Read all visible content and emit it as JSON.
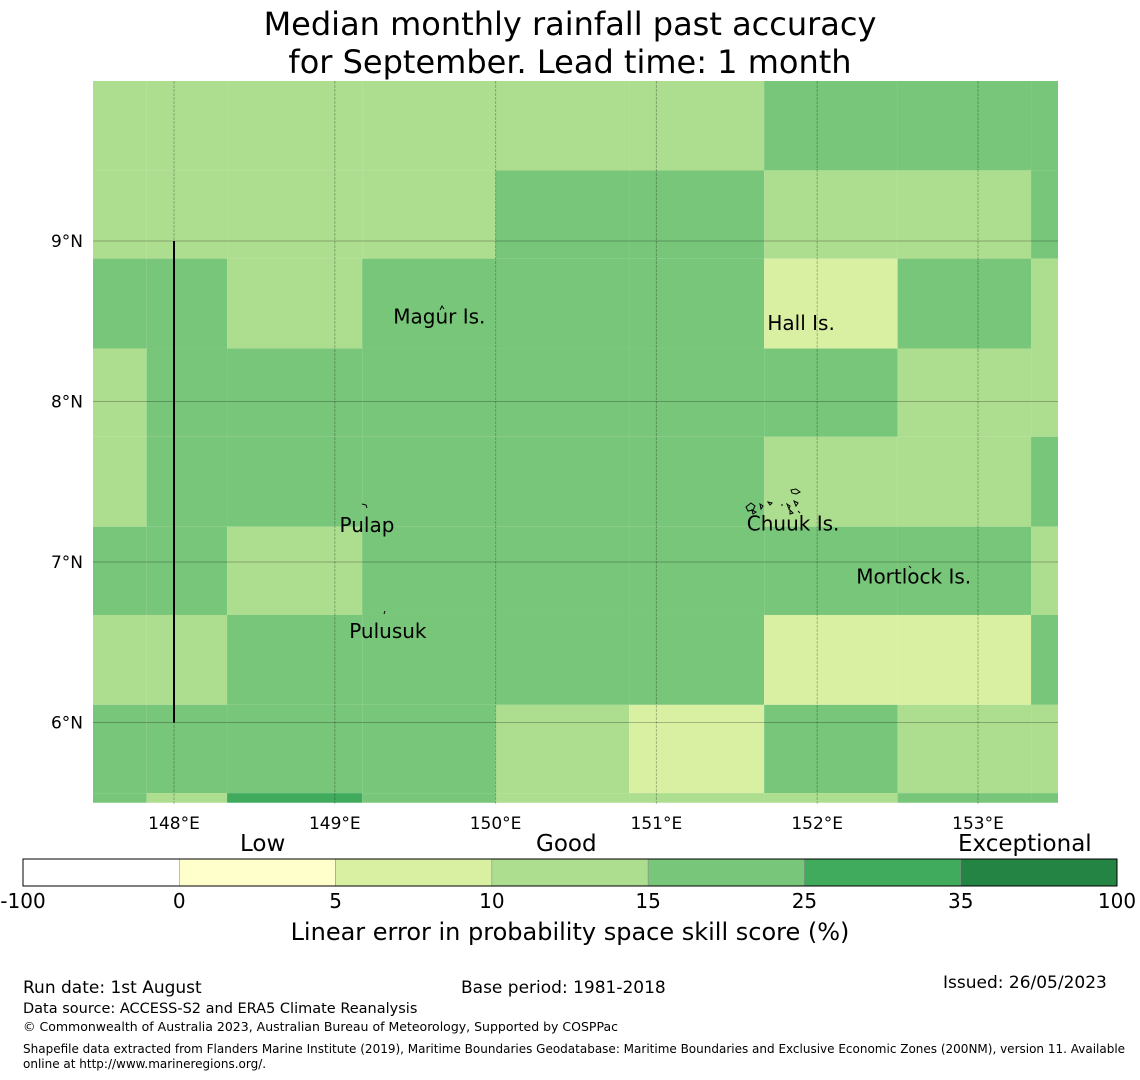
{
  "title": {
    "line1": "Median monthly rainfall past accuracy",
    "line2": "for September. Lead time: 1 month"
  },
  "map": {
    "lon_range": [
      147.5,
      153.5
    ],
    "lat_range": [
      5.5,
      10.0
    ],
    "lon_ticks": [
      {
        "value": 148,
        "label": "148°E"
      },
      {
        "value": 149,
        "label": "149°E"
      },
      {
        "value": 150,
        "label": "150°E"
      },
      {
        "value": 151,
        "label": "151°E"
      },
      {
        "value": 152,
        "label": "152°E"
      },
      {
        "value": 153,
        "label": "153°E"
      }
    ],
    "lat_ticks": [
      {
        "value": 9,
        "label": "9°N"
      },
      {
        "value": 8,
        "label": "8°N"
      },
      {
        "value": 7,
        "label": "7°N"
      },
      {
        "value": 6,
        "label": "6°N"
      }
    ],
    "boundary_line": {
      "lon": 148,
      "lat_from": 6,
      "lat_to": 9
    },
    "grid_lons": [
      147.0,
      147.83,
      148.33,
      149.17,
      150.0,
      150.83,
      151.67,
      152.5,
      153.33,
      154.17
    ],
    "grid_lats": [
      10.0,
      9.44,
      8.89,
      8.33,
      7.78,
      7.22,
      6.67,
      6.11,
      5.56,
      5.5
    ],
    "cells": [
      [
        3,
        3,
        3,
        3,
        3,
        3,
        4,
        4,
        4
      ],
      [
        3,
        3,
        3,
        3,
        4,
        4,
        3,
        3,
        4
      ],
      [
        4,
        4,
        3,
        4,
        4,
        4,
        2,
        4,
        3
      ],
      [
        3,
        4,
        4,
        4,
        4,
        4,
        4,
        3,
        3
      ],
      [
        3,
        4,
        4,
        4,
        4,
        4,
        3,
        3,
        4
      ],
      [
        4,
        4,
        3,
        4,
        4,
        4,
        4,
        4,
        3
      ],
      [
        3,
        3,
        4,
        4,
        4,
        4,
        2,
        2,
        4
      ],
      [
        4,
        4,
        4,
        4,
        3,
        2,
        4,
        3,
        3
      ],
      [
        4,
        3,
        5,
        4,
        3,
        3,
        3,
        4,
        4
      ]
    ],
    "places": [
      {
        "name": "Magur Is.",
        "lon": 149.65,
        "lat": 8.52
      },
      {
        "name": "Hall Is.",
        "lon": 151.9,
        "lat": 8.48
      },
      {
        "name": "Pulap",
        "lon": 149.2,
        "lat": 7.22
      },
      {
        "name": "Chuuk Is.",
        "lon": 151.85,
        "lat": 7.23
      },
      {
        "name": "Mortlock Is.",
        "lon": 152.6,
        "lat": 6.9
      },
      {
        "name": "Pulusuk",
        "lon": 149.33,
        "lat": 6.56
      }
    ]
  },
  "colorbar": {
    "categories": [
      {
        "label": "Low"
      },
      {
        "label": "Good"
      },
      {
        "label": "Exceptional"
      }
    ],
    "bins": [
      {
        "from": "-100",
        "to": "0",
        "color": "#ffffff"
      },
      {
        "from": "0",
        "to": "5",
        "color": "#ffffcc"
      },
      {
        "from": "5",
        "to": "10",
        "color": "#d9f0a3"
      },
      {
        "from": "10",
        "to": "15",
        "color": "#addd8e"
      },
      {
        "from": "15",
        "to": "25",
        "color": "#78c679"
      },
      {
        "from": "25",
        "to": "35",
        "color": "#41ab5d"
      },
      {
        "from": "35",
        "to": "100",
        "color": "#238443"
      }
    ],
    "tick_labels": [
      "-100",
      "0",
      "5",
      "10",
      "15",
      "25",
      "35",
      "100"
    ],
    "label": "Linear error in probability space skill score (%)"
  },
  "footer": {
    "run_date": "Run date: 1st August",
    "base_period": "Base period: 1981-2018",
    "issued": "Issued: 26/05/2023",
    "data_source": "Data source: ACCESS-S2 and ERA5 Climate Reanalysis",
    "copyright": "© Commonwealth of Australia 2023, Australian Bureau of Meteorology, Supported by COSPPac",
    "shapefile_line1": "Shapefile data extracted from Flanders Marine Institute (2019), Maritime Boundaries Geodatabase: Maritime Boundaries and Exclusive Economic Zones (200NM), version 11. Available",
    "shapefile_line2": "online at http://www.marineregions.org/."
  }
}
